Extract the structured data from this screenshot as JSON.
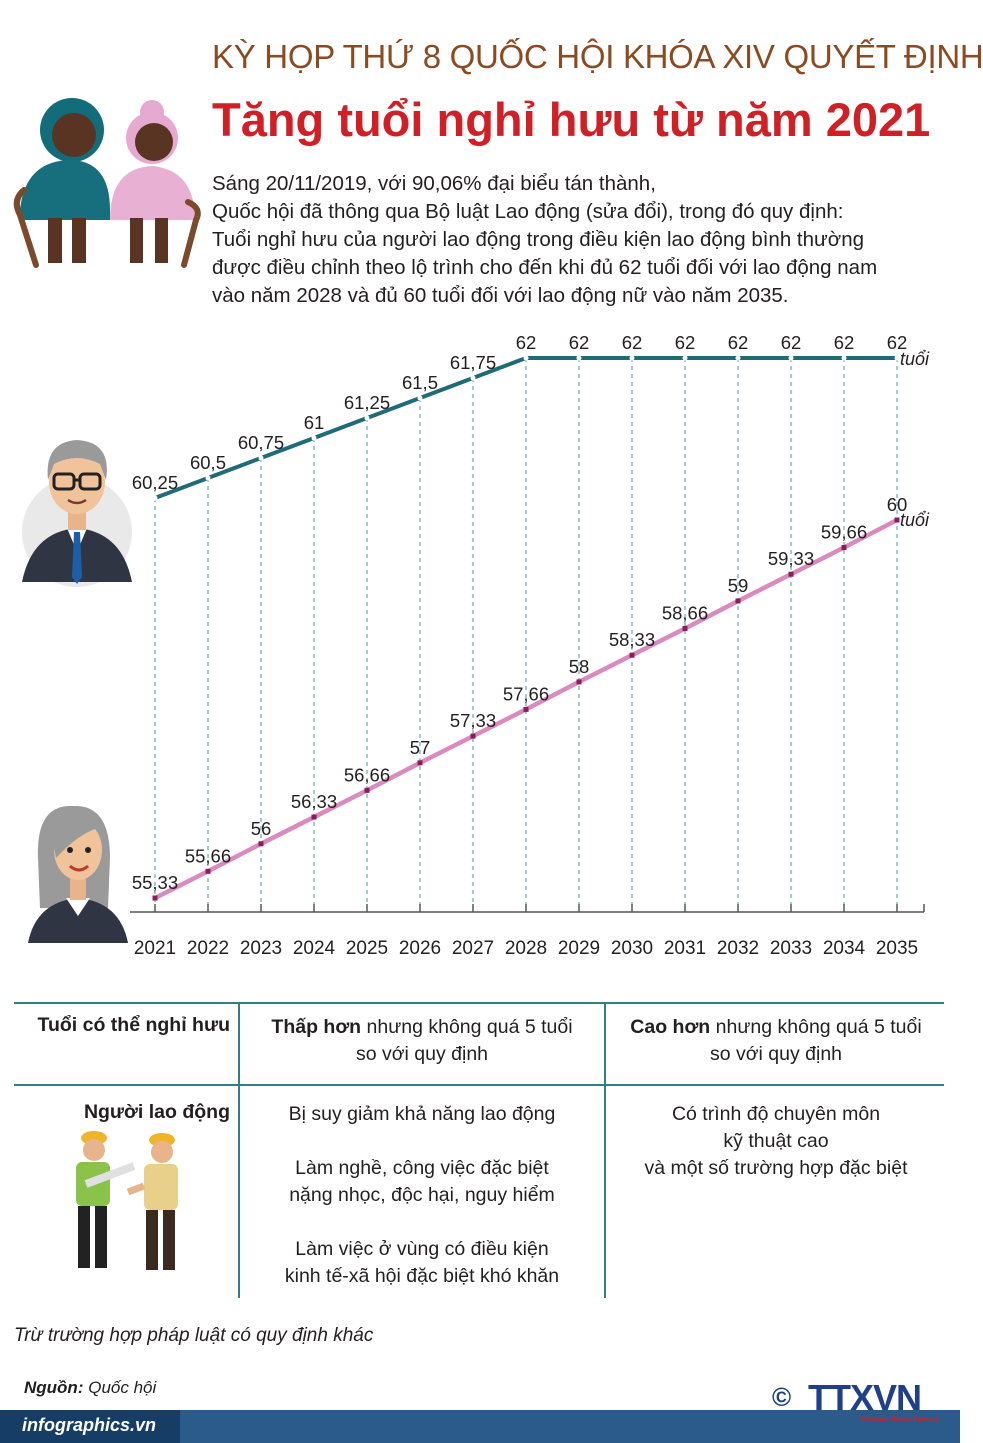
{
  "header": {
    "kicker": "KỲ HỌP THỨ 8 QUỐC HỘI KHÓA XIV QUYẾT ĐỊNH",
    "title": "Tăng tuổi nghỉ hưu từ năm 2021"
  },
  "intro": {
    "lines": [
      "Sáng 20/11/2019, với 90,06% đại biểu tán thành,",
      "Quốc hội đã thông qua Bộ luật Lao động (sửa đổi), trong đó quy định:",
      "Tuổi nghỉ hưu của người lao động trong điều kiện lao động bình thường",
      "được điều chỉnh theo lộ trình cho đến khi đủ 62 tuổi đối với lao động nam",
      "vào năm 2028 và đủ 60 tuổi đối với lao động nữ vào năm 2035."
    ]
  },
  "chart_data": {
    "type": "line",
    "x": [
      "2021",
      "2022",
      "2023",
      "2024",
      "2025",
      "2026",
      "2027",
      "2028",
      "2029",
      "2030",
      "2031",
      "2032",
      "2033",
      "2034",
      "2035"
    ],
    "series": [
      {
        "labels": [
          "60,25",
          "60,5",
          "60,75",
          "61",
          "61,25",
          "61,5",
          "61,75",
          "62",
          "62",
          "62",
          "62",
          "62",
          "62",
          "62",
          "62"
        ],
        "values": [
          60.25,
          60.5,
          60.75,
          61,
          61.25,
          61.5,
          61.75,
          62,
          62,
          62,
          62,
          62,
          62,
          62,
          62
        ],
        "unit": "tuổi",
        "color": "#1f6b78"
      },
      {
        "labels": [
          "55,33",
          "55,66",
          "56",
          "56,33",
          "56,66",
          "57",
          "57,33",
          "57,66",
          "58",
          "58,33",
          "58,66",
          "59",
          "59,33",
          "59,66",
          "60"
        ],
        "values": [
          55.33,
          55.66,
          56,
          56.33,
          56.66,
          57,
          57.33,
          57.66,
          58,
          58.33,
          58.66,
          59,
          59.33,
          59.66,
          60
        ],
        "unit": "tuổi",
        "color": "#d98bbf"
      }
    ]
  },
  "table": {
    "header": {
      "col1": "Tuổi có thể nghỉ hưu",
      "col2_bold": "Thấp hơn",
      "col2_rest": " nhưng không quá 5 tuổi",
      "col2_line2": "so với quy định",
      "col3_bold": "Cao hơn",
      "col3_rest": " nhưng không quá 5 tuổi",
      "col3_line2": "so với quy định"
    },
    "row_label": "Người lao động",
    "col2_items": [
      [
        "Bị suy giảm khả năng lao động"
      ],
      [
        "Làm nghề, công việc đặc biệt",
        "nặng nhọc, độc hại, nguy hiểm"
      ],
      [
        "Làm việc ở vùng có điều kiện",
        "kinh tế-xã hội đặc biệt khó khăn"
      ]
    ],
    "col3_lines": [
      "Có trình độ chuyên môn",
      "kỹ thuật cao",
      "và một số trường hợp đặc biệt"
    ]
  },
  "note": "Trừ trường hợp pháp luật có quy định khác",
  "source": {
    "label": "Nguồn:",
    "value": "Quốc hội"
  },
  "footer": {
    "site": "infographics.vn"
  },
  "logo": {
    "copyright": "©",
    "name": "TTXVN",
    "sub": "Vietnam News Agency"
  },
  "colors": {
    "kicker": "#8a4a22",
    "title": "#d11f26",
    "accent": "#2f7f84",
    "footer": "#2b5b8a"
  }
}
